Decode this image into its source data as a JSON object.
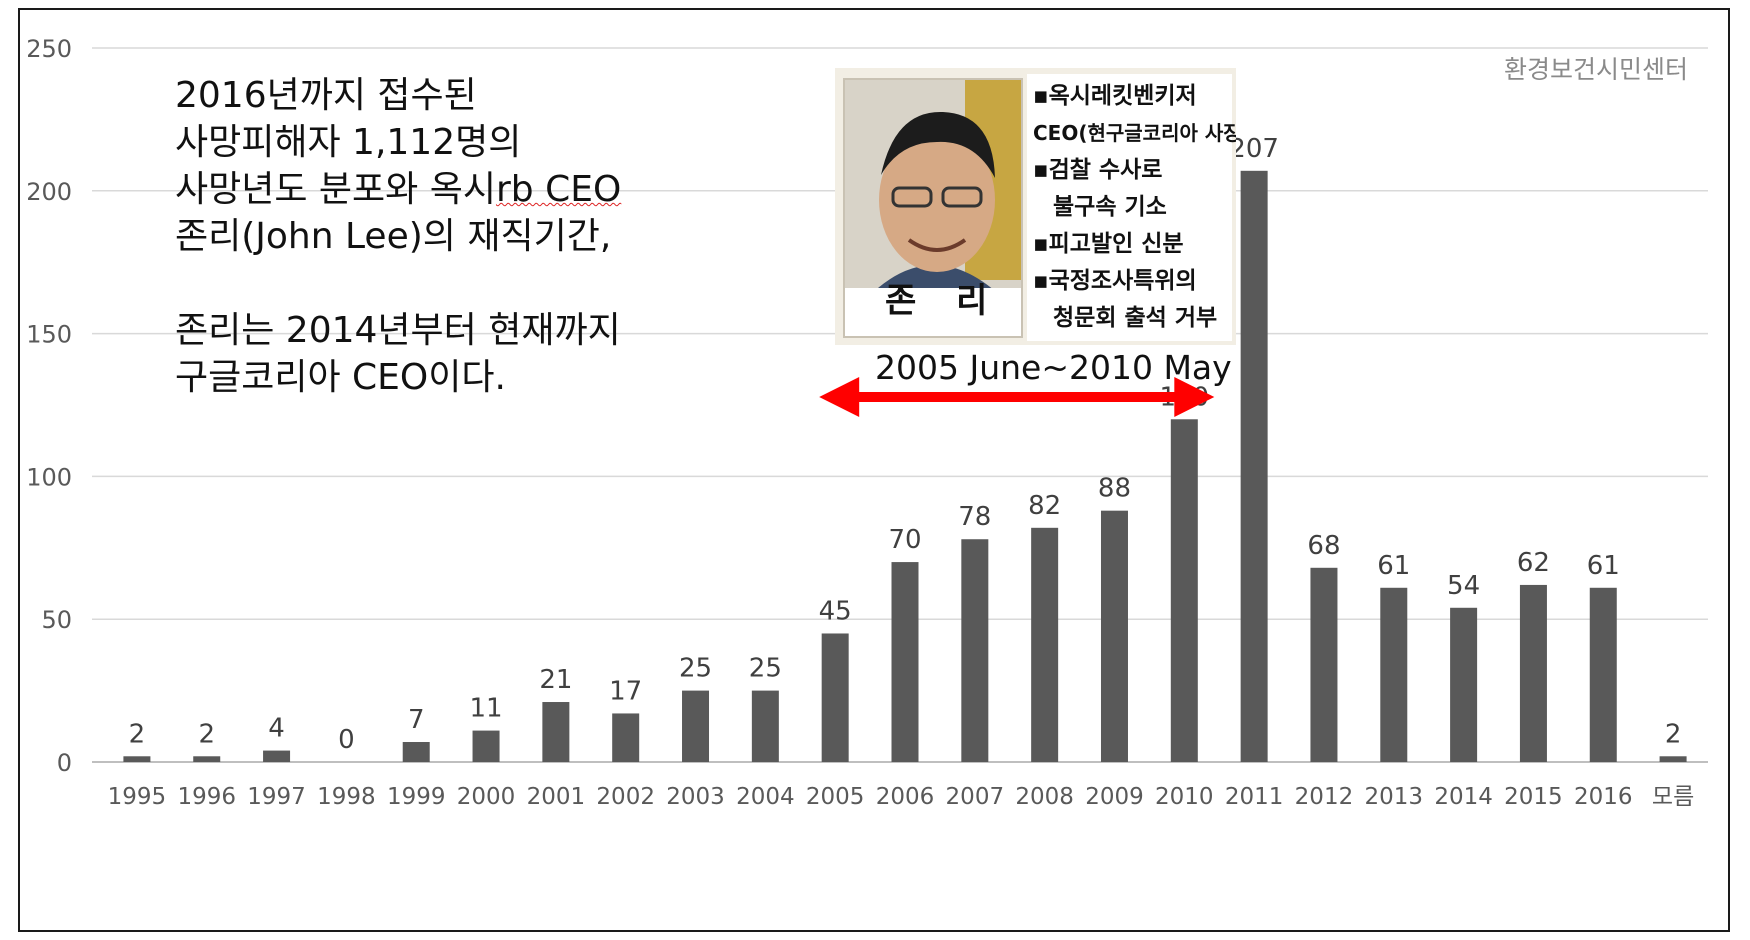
{
  "source_label": "환경보건시민센터",
  "caption": {
    "lines": [
      "2016년까지 접수된",
      "사망피해자 1,112명의",
      "사망년도 분포와 옥시",
      "존리(John Lee)의 재직기간,",
      "",
      "존리는 2014년부터 현재까지",
      "구글코리아 CEO이다."
    ],
    "line3_tail": "rb CEO"
  },
  "photo": {
    "poster_lines": [
      "▪옥시레킷벤키저",
      "CEO(현구글코리아 사장)",
      "▪검찰 수사로",
      "불구속 기소",
      "▪피고발인 신분",
      "▪국정조사특위의",
      "청문회 출석 거부"
    ],
    "name": "존 리"
  },
  "tenure_label": "2005 June~2010 May",
  "colors": {
    "bar": "#595959",
    "arrow": "#ff0000",
    "grid": "#d9d9d9",
    "axis_text": "#595959",
    "label_text": "#404040"
  },
  "chart_data": {
    "type": "bar",
    "categories": [
      "1995",
      "1996",
      "1997",
      "1998",
      "1999",
      "2000",
      "2001",
      "2002",
      "2003",
      "2004",
      "2005",
      "2006",
      "2007",
      "2008",
      "2009",
      "2010",
      "2011",
      "2012",
      "2013",
      "2014",
      "2015",
      "2016",
      "모름"
    ],
    "values": [
      2,
      2,
      4,
      0,
      7,
      11,
      21,
      17,
      25,
      25,
      45,
      70,
      78,
      82,
      88,
      120,
      207,
      68,
      61,
      54,
      62,
      61,
      2
    ],
    "ylim": [
      0,
      250
    ],
    "yticks": [
      0,
      50,
      100,
      150,
      200,
      250
    ],
    "grid": true,
    "data_labels": true,
    "highlight_range": {
      "start": "2005",
      "end": "2010",
      "label": "2005 June~2010 May"
    }
  }
}
